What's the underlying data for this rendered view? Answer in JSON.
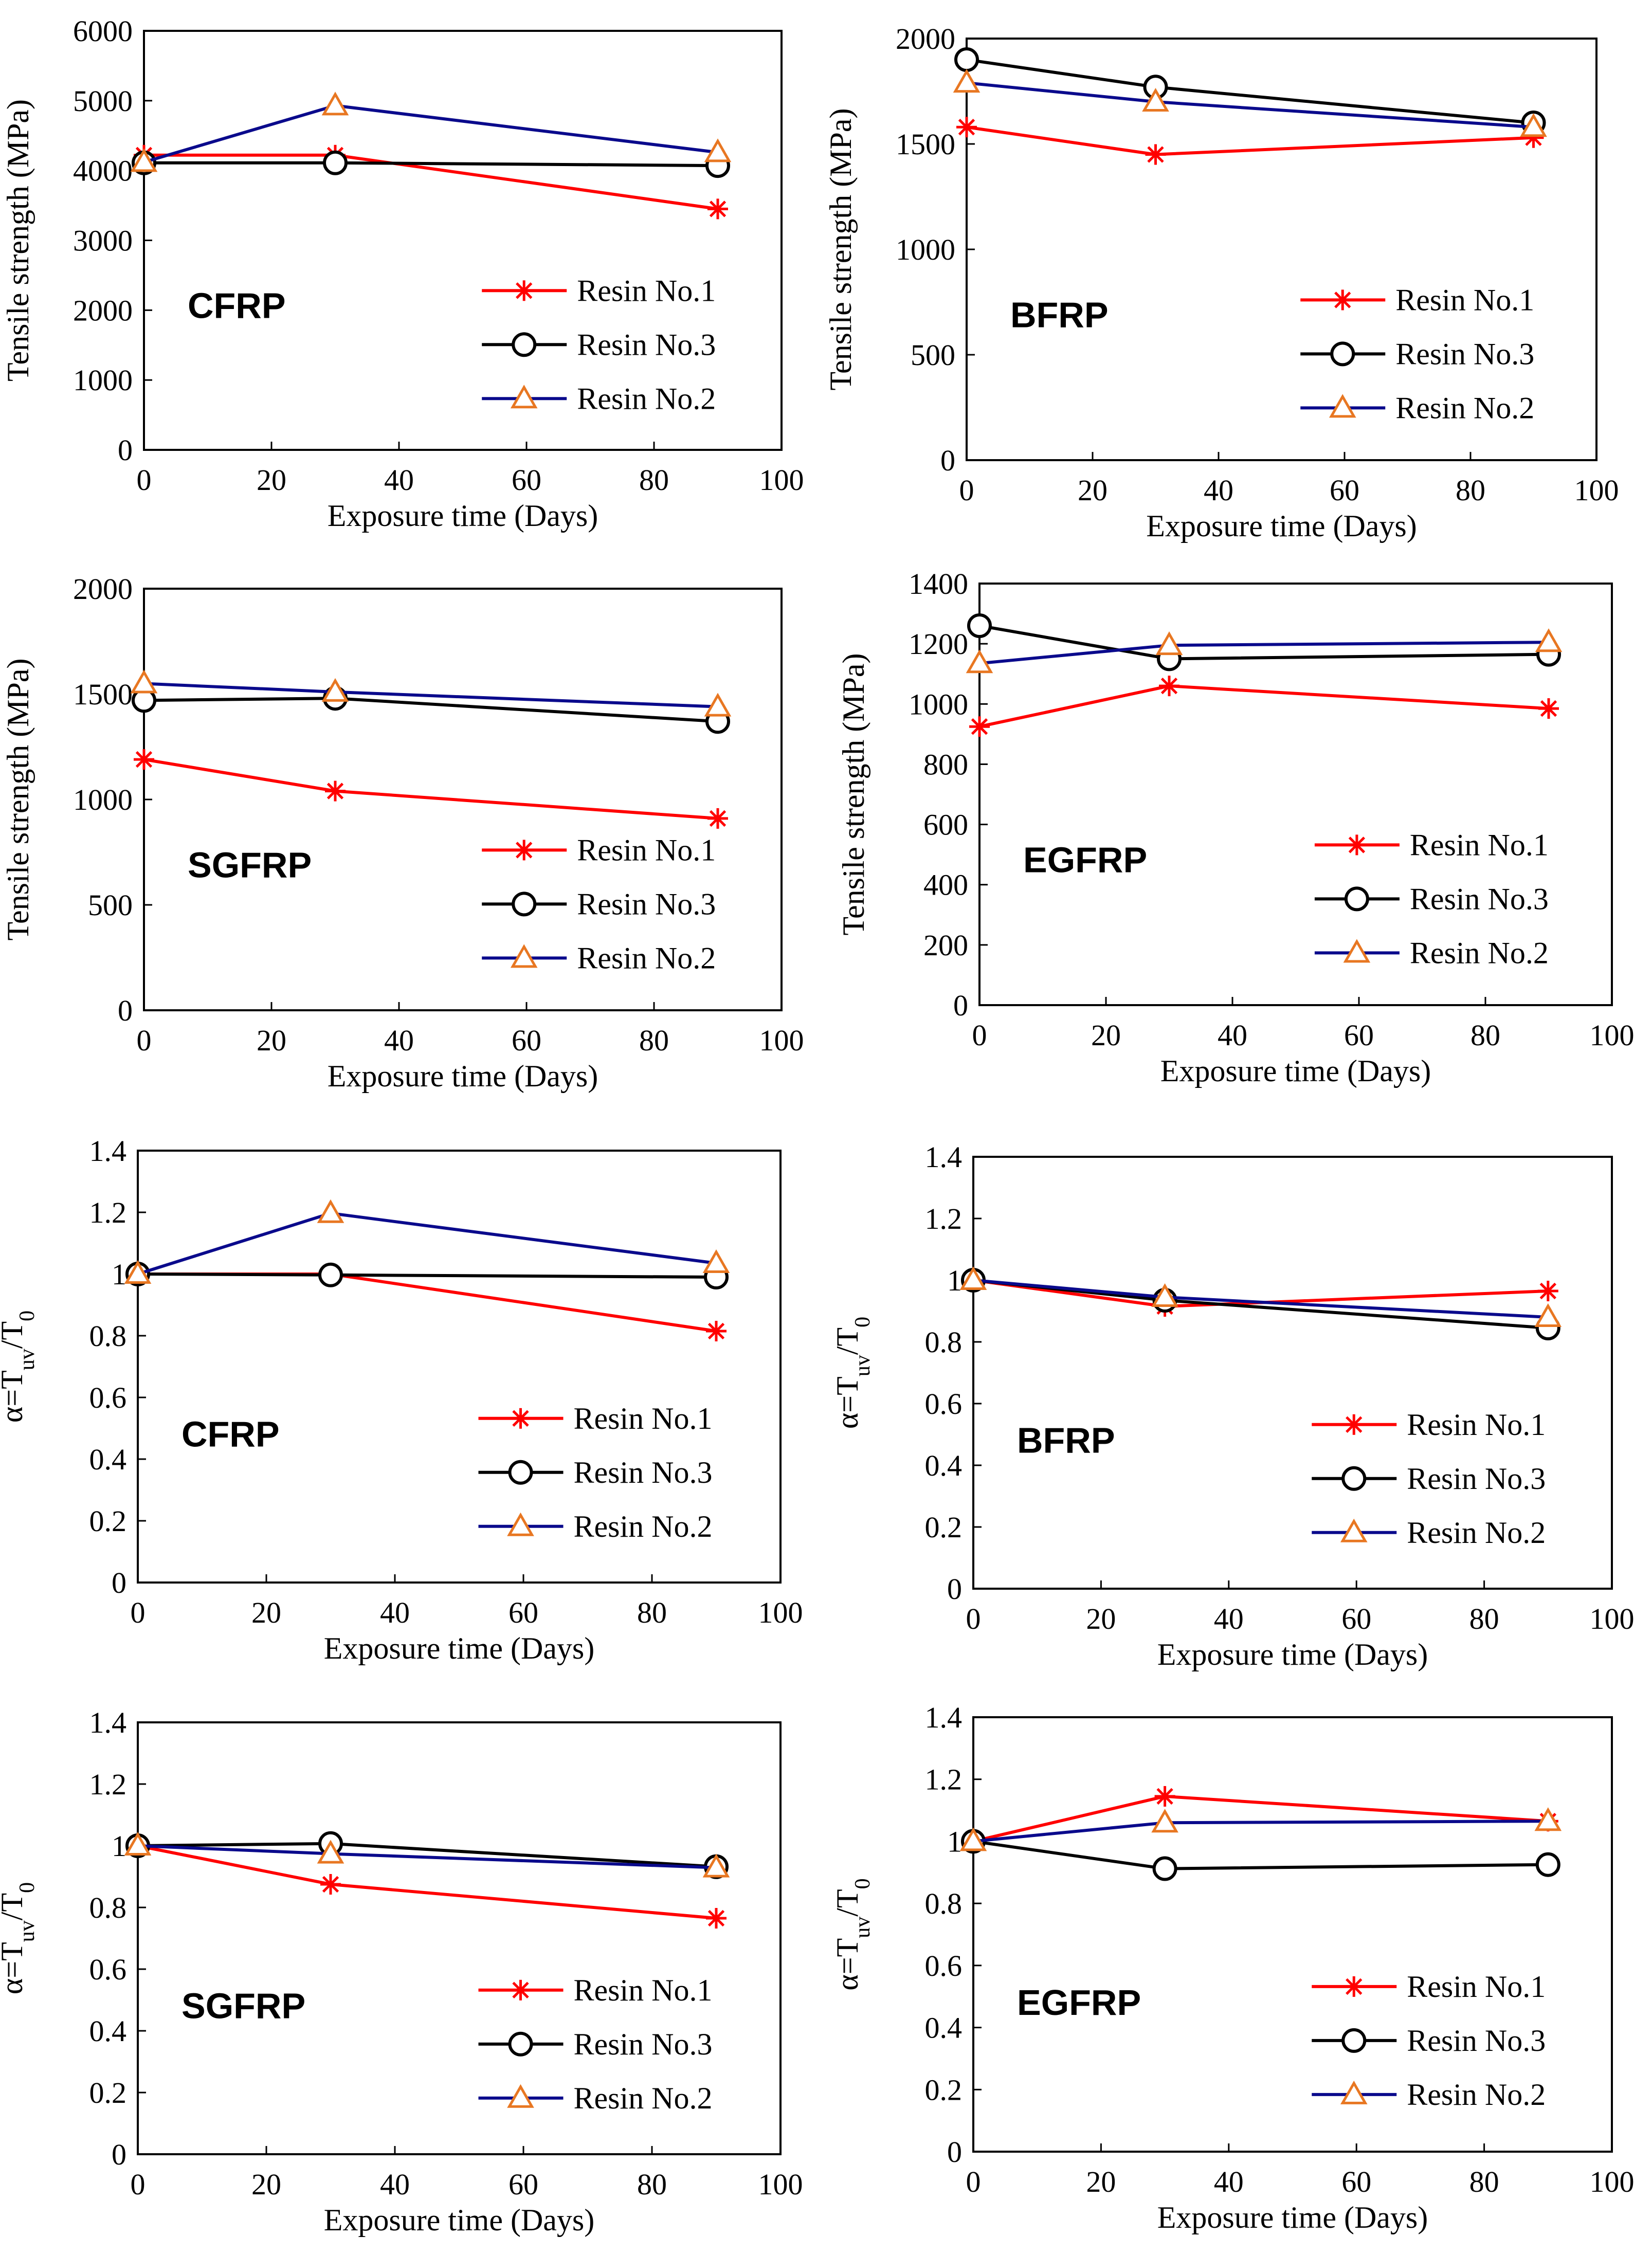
{
  "figure": {
    "colors": {
      "resin1": "#ff0000",
      "resin3": "#000000",
      "resin2": "#0a0a8c",
      "triangle_marker": "#e87722",
      "axis": "#000000"
    }
  },
  "chart_data": [
    {
      "type": "line",
      "panel_label": "CFRP",
      "xlabel": "Exposure time (Days)",
      "ylabel": "Tensile strength (MPa)",
      "xlim": [
        0,
        100
      ],
      "ylim": [
        0,
        6000
      ],
      "xticks": [
        0,
        20,
        40,
        60,
        80,
        100
      ],
      "yticks": [
        0,
        1000,
        2000,
        3000,
        4000,
        5000,
        6000
      ],
      "ytick_labels": [
        "0",
        "1000",
        "2000",
        "3000",
        "4000",
        "5000",
        "6000"
      ],
      "x": [
        0,
        30,
        90
      ],
      "legend_position": "bottom-right",
      "series": [
        {
          "name": "Resin No.1",
          "marker": "star",
          "values": [
            4220,
            4220,
            3450
          ]
        },
        {
          "name": "Resin No.3",
          "marker": "circle",
          "values": [
            4110,
            4110,
            4070
          ]
        },
        {
          "name": "Resin No.2",
          "marker": "triangle",
          "values": [
            4120,
            4930,
            4260
          ]
        }
      ]
    },
    {
      "type": "line",
      "panel_label": "BFRP",
      "xlabel": "Exposure time (Days)",
      "ylabel": "Tensile strength (MPa)",
      "xlim": [
        0,
        100
      ],
      "ylim": [
        0,
        2000
      ],
      "xticks": [
        0,
        20,
        40,
        60,
        80,
        100
      ],
      "yticks": [
        0,
        500,
        1000,
        1500,
        2000
      ],
      "ytick_labels": [
        "0",
        "500",
        "1000",
        "1500",
        "2000"
      ],
      "x": [
        0,
        30,
        90
      ],
      "legend_position": "bottom-right",
      "series": [
        {
          "name": "Resin No.1",
          "marker": "star",
          "values": [
            1580,
            1450,
            1530
          ]
        },
        {
          "name": "Resin No.3",
          "marker": "circle",
          "values": [
            1900,
            1770,
            1600
          ]
        },
        {
          "name": "Resin No.2",
          "marker": "triangle",
          "values": [
            1790,
            1700,
            1580
          ]
        }
      ]
    },
    {
      "type": "line",
      "panel_label": "SGFRP",
      "xlabel": "Exposure time (Days)",
      "ylabel": "Tensile strength (MPa)",
      "xlim": [
        0,
        100
      ],
      "ylim": [
        0,
        2000
      ],
      "xticks": [
        0,
        20,
        40,
        60,
        80,
        100
      ],
      "yticks": [
        0,
        500,
        1000,
        1500,
        2000
      ],
      "ytick_labels": [
        "0",
        "500",
        "1000",
        "1500",
        "2000"
      ],
      "x": [
        0,
        30,
        90
      ],
      "legend_position": "bottom-right",
      "series": [
        {
          "name": "Resin No.1",
          "marker": "star",
          "values": [
            1190,
            1040,
            910
          ]
        },
        {
          "name": "Resin No.3",
          "marker": "circle",
          "values": [
            1470,
            1480,
            1370
          ]
        },
        {
          "name": "Resin No.2",
          "marker": "triangle",
          "values": [
            1550,
            1510,
            1440
          ]
        }
      ]
    },
    {
      "type": "line",
      "panel_label": "EGFRP",
      "xlabel": "Exposure time (Days)",
      "ylabel": "Tensile strength (MPa)",
      "xlim": [
        0,
        100
      ],
      "ylim": [
        0,
        1400
      ],
      "xticks": [
        0,
        20,
        40,
        60,
        80,
        100
      ],
      "yticks": [
        0,
        200,
        400,
        600,
        800,
        1000,
        1200,
        1400
      ],
      "ytick_labels": [
        "0",
        "200",
        "400",
        "600",
        "800",
        "1000",
        "1200",
        "1400"
      ],
      "x": [
        0,
        30,
        90
      ],
      "legend_position": "bottom-right",
      "series": [
        {
          "name": "Resin No.1",
          "marker": "star",
          "values": [
            925,
            1060,
            985
          ]
        },
        {
          "name": "Resin No.3",
          "marker": "circle",
          "values": [
            1260,
            1150,
            1165
          ]
        },
        {
          "name": "Resin No.2",
          "marker": "triangle",
          "values": [
            1135,
            1195,
            1205
          ]
        }
      ]
    },
    {
      "type": "line",
      "panel_label": "CFRP",
      "xlabel": "Exposure time (Days)",
      "ylabel": "α=Tuv/T0",
      "ylabel_parts": [
        "α=T",
        "uv",
        "/T",
        "0"
      ],
      "xlim": [
        0,
        100
      ],
      "ylim": [
        0,
        1.4
      ],
      "xticks": [
        0,
        20,
        40,
        60,
        80,
        100
      ],
      "yticks": [
        0,
        0.2,
        0.4,
        0.6,
        0.8,
        1.0,
        1.2,
        1.4
      ],
      "ytick_labels": [
        "0",
        "0.2",
        "0.4",
        "0.6",
        "0.8",
        "1",
        "1.2",
        "1.4"
      ],
      "x": [
        0,
        30,
        90
      ],
      "legend_position": "bottom-right",
      "series": [
        {
          "name": "Resin No.1",
          "marker": "star",
          "values": [
            1.0,
            1.0,
            0.815
          ]
        },
        {
          "name": "Resin No.3",
          "marker": "circle",
          "values": [
            1.0,
            0.997,
            0.99
          ]
        },
        {
          "name": "Resin No.2",
          "marker": "triangle",
          "values": [
            1.0,
            1.197,
            1.035
          ]
        }
      ]
    },
    {
      "type": "line",
      "panel_label": "BFRP",
      "xlabel": "Exposure time (Days)",
      "ylabel": "α=Tuv/T0",
      "ylabel_parts": [
        "α=T",
        "uv",
        "/T",
        "0"
      ],
      "xlim": [
        0,
        100
      ],
      "ylim": [
        0,
        1.4
      ],
      "xticks": [
        0,
        20,
        40,
        60,
        80,
        100
      ],
      "yticks": [
        0,
        0.2,
        0.4,
        0.6,
        0.8,
        1.0,
        1.2,
        1.4
      ],
      "ytick_labels": [
        "0",
        "0.2",
        "0.4",
        "0.6",
        "0.8",
        "1",
        "1.2",
        "1.4"
      ],
      "x": [
        0,
        30,
        90
      ],
      "legend_position": "bottom-right",
      "series": [
        {
          "name": "Resin No.1",
          "marker": "star",
          "values": [
            1.0,
            0.915,
            0.965
          ]
        },
        {
          "name": "Resin No.3",
          "marker": "circle",
          "values": [
            1.0,
            0.935,
            0.845
          ]
        },
        {
          "name": "Resin No.2",
          "marker": "triangle",
          "values": [
            1.0,
            0.945,
            0.88
          ]
        }
      ]
    },
    {
      "type": "line",
      "panel_label": "SGFRP",
      "xlabel": "Exposure time (Days)",
      "ylabel": "α=Tuv/T0",
      "ylabel_parts": [
        "α=T",
        "uv",
        "/T",
        "0"
      ],
      "xlim": [
        0,
        100
      ],
      "ylim": [
        0,
        1.4
      ],
      "xticks": [
        0,
        20,
        40,
        60,
        80,
        100
      ],
      "yticks": [
        0,
        0.2,
        0.4,
        0.6,
        0.8,
        1.0,
        1.2,
        1.4
      ],
      "ytick_labels": [
        "0",
        "0.2",
        "0.4",
        "0.6",
        "0.8",
        "1",
        "1.2",
        "1.4"
      ],
      "x": [
        0,
        30,
        90
      ],
      "legend_position": "bottom-right",
      "series": [
        {
          "name": "Resin No.1",
          "marker": "star",
          "values": [
            1.0,
            0.875,
            0.765
          ]
        },
        {
          "name": "Resin No.3",
          "marker": "circle",
          "values": [
            1.0,
            1.007,
            0.932
          ]
        },
        {
          "name": "Resin No.2",
          "marker": "triangle",
          "values": [
            1.0,
            0.974,
            0.929
          ]
        }
      ]
    },
    {
      "type": "line",
      "panel_label": "EGFRP",
      "xlabel": "Exposure time (Days)",
      "ylabel": "α=Tuv/T0",
      "ylabel_parts": [
        "α=T",
        "uv",
        "/T",
        "0"
      ],
      "xlim": [
        0,
        100
      ],
      "ylim": [
        0,
        1.4
      ],
      "xticks": [
        0,
        20,
        40,
        60,
        80,
        100
      ],
      "yticks": [
        0,
        0.2,
        0.4,
        0.6,
        0.8,
        1.0,
        1.2,
        1.4
      ],
      "ytick_labels": [
        "0",
        "0.2",
        "0.4",
        "0.6",
        "0.8",
        "1",
        "1.2",
        "1.4"
      ],
      "x": [
        0,
        30,
        90
      ],
      "legend_position": "bottom-right",
      "series": [
        {
          "name": "Resin No.1",
          "marker": "star",
          "values": [
            1.0,
            1.145,
            1.065
          ]
        },
        {
          "name": "Resin No.3",
          "marker": "circle",
          "values": [
            1.0,
            0.912,
            0.925
          ]
        },
        {
          "name": "Resin No.2",
          "marker": "triangle",
          "values": [
            1.0,
            1.06,
            1.065
          ]
        }
      ]
    }
  ]
}
